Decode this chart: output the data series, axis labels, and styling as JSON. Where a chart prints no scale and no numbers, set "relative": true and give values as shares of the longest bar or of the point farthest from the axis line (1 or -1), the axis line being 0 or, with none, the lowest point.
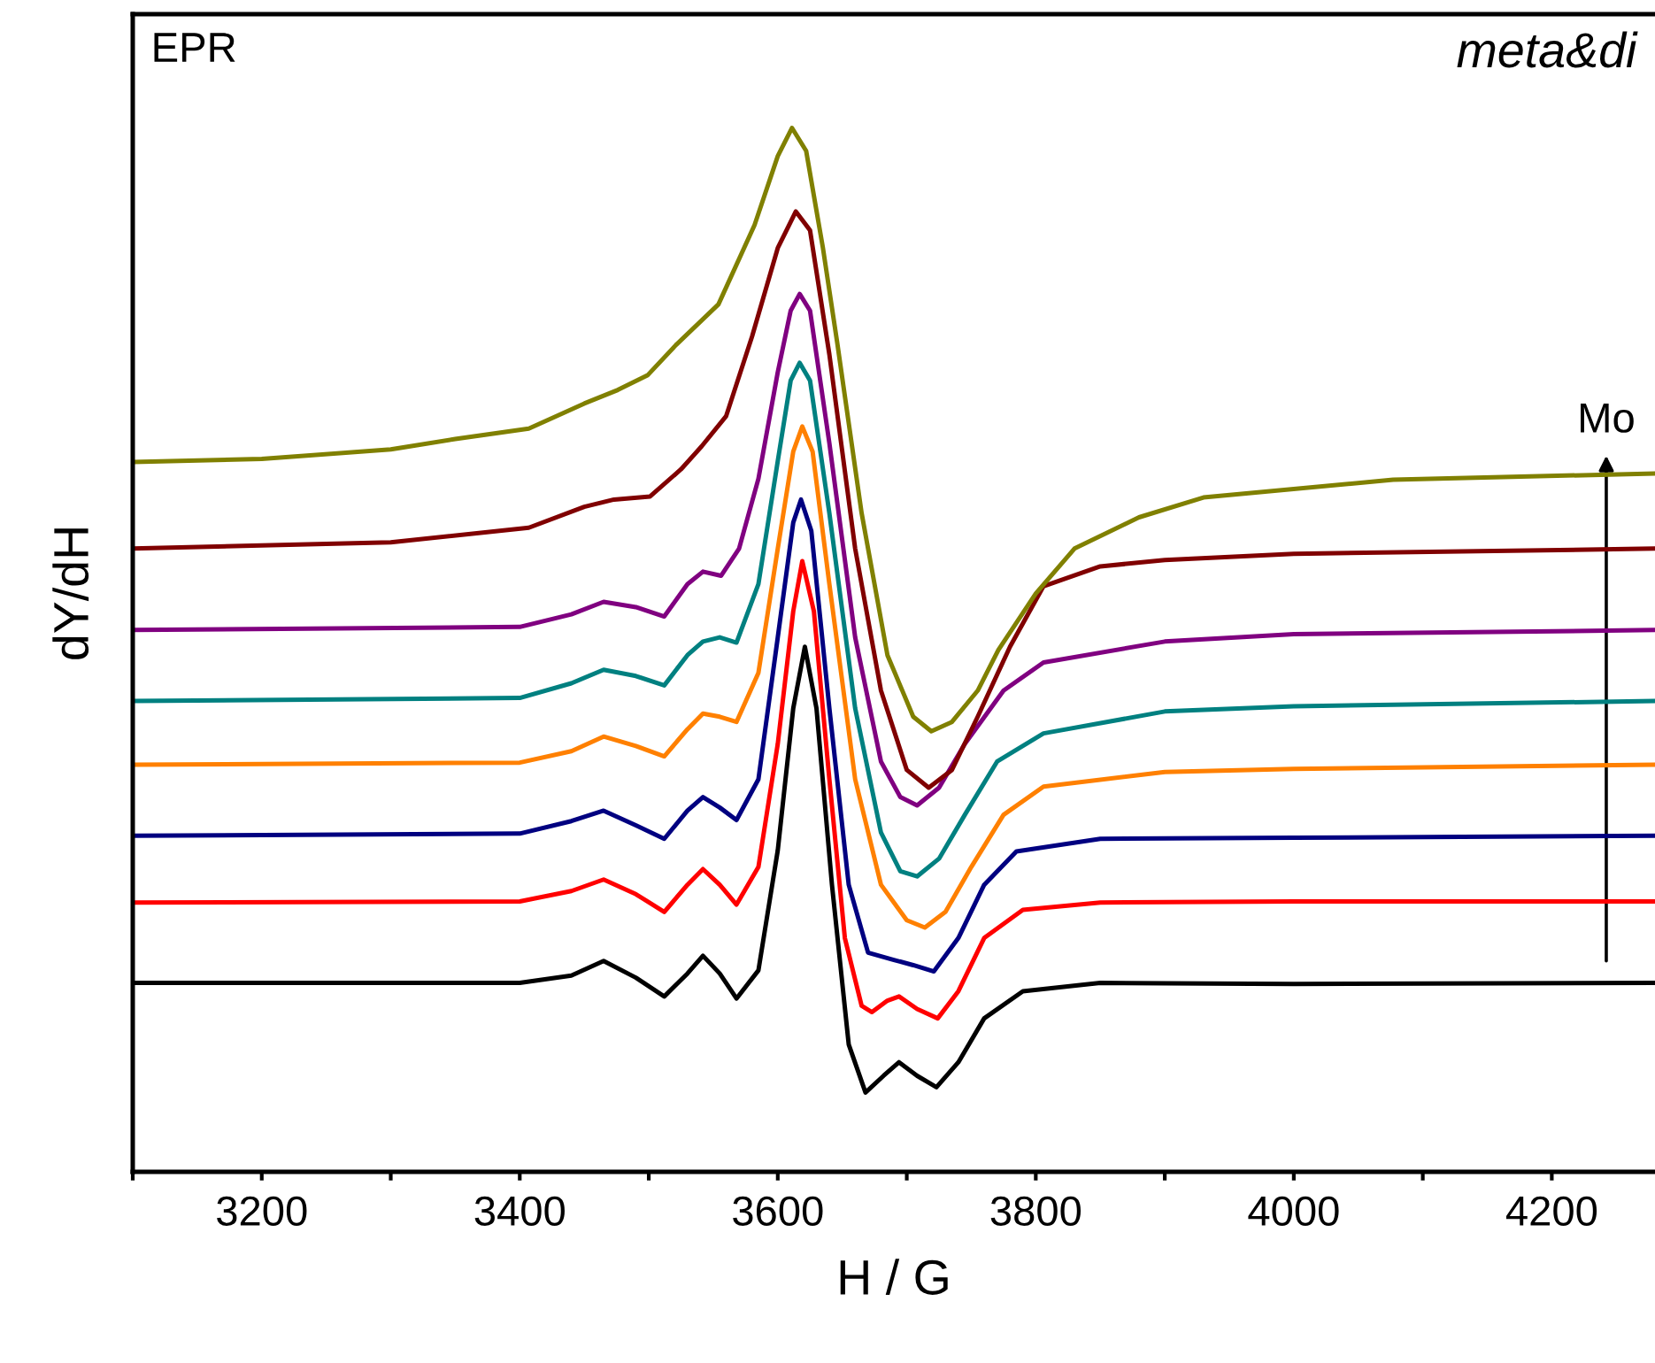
{
  "chart_data": {
    "type": "line",
    "relative": true,
    "xlabel": "H / G",
    "ylabel": "dY/dH",
    "annotations": [
      "EPR",
      "meta&di",
      "Mo"
    ],
    "xlim": [
      3100,
      4280
    ],
    "xticks": [
      {
        "value": 3100,
        "label": null
      },
      3200,
      {
        "value": 3300,
        "label": null
      },
      3400,
      {
        "value": 3500,
        "label": null
      },
      3600,
      {
        "value": 3700,
        "label": null
      },
      3800,
      {
        "value": 3900,
        "label": null
      },
      4000,
      {
        "value": 4100,
        "label": null
      },
      4200
    ],
    "tick_labels": "x",
    "grid": false,
    "legend": false,
    "marker": "none",
    "line_style": "solid",
    "series": [
      {
        "color": "#000000",
        "x": [
          3100,
          3400,
          3440,
          3465,
          3490,
          3512,
          3530,
          3542,
          3555,
          3568,
          3585,
          3600,
          3612,
          3621,
          3630,
          3642,
          3655,
          3668,
          3682,
          3694,
          3708,
          3723,
          3740,
          3760,
          3790,
          3850,
          4000,
          4280
        ],
        "values": [
          0.181,
          0.181,
          0.188,
          0.202,
          0.186,
          0.168,
          0.19,
          0.207,
          0.19,
          0.166,
          0.193,
          0.308,
          0.444,
          0.503,
          0.444,
          0.275,
          0.122,
          0.076,
          0.092,
          0.105,
          0.092,
          0.081,
          0.105,
          0.147,
          0.173,
          0.181,
          0.18,
          0.181
        ]
      },
      {
        "color": "#ff0000",
        "x": [
          3100,
          3400,
          3440,
          3465,
          3490,
          3512,
          3530,
          3542,
          3555,
          3568,
          3585,
          3600,
          3612,
          3619,
          3628,
          3640,
          3652,
          3665,
          3673,
          3685,
          3694,
          3708,
          3724,
          3740,
          3760,
          3790,
          3850,
          4000,
          4280
        ],
        "values": [
          0.258,
          0.259,
          0.269,
          0.28,
          0.266,
          0.249,
          0.275,
          0.29,
          0.275,
          0.256,
          0.292,
          0.41,
          0.537,
          0.585,
          0.537,
          0.376,
          0.224,
          0.159,
          0.153,
          0.164,
          0.168,
          0.156,
          0.147,
          0.173,
          0.224,
          0.251,
          0.258,
          0.259,
          0.259
        ]
      },
      {
        "color": "#000080",
        "x": [
          3100,
          3400,
          3440,
          3465,
          3490,
          3512,
          3530,
          3542,
          3555,
          3568,
          3585,
          3600,
          3612,
          3618,
          3626,
          3640,
          3655,
          3670,
          3690,
          3705,
          3721,
          3740,
          3760,
          3785,
          3850,
          4000,
          4280
        ],
        "values": [
          0.322,
          0.324,
          0.336,
          0.346,
          0.332,
          0.319,
          0.346,
          0.359,
          0.349,
          0.337,
          0.376,
          0.512,
          0.622,
          0.644,
          0.614,
          0.444,
          0.275,
          0.21,
          0.203,
          0.198,
          0.192,
          0.224,
          0.275,
          0.307,
          0.319,
          0.32,
          0.322
        ]
      },
      {
        "color": "#ff8000",
        "x": [
          3100,
          3400,
          3440,
          3465,
          3490,
          3512,
          3530,
          3542,
          3555,
          3568,
          3585,
          3600,
          3612,
          3619,
          3627,
          3640,
          3660,
          3680,
          3700,
          3714,
          3730,
          3750,
          3775,
          3806,
          3900,
          4000,
          4280
        ],
        "values": [
          0.39,
          0.392,
          0.403,
          0.417,
          0.408,
          0.398,
          0.424,
          0.439,
          0.436,
          0.431,
          0.478,
          0.597,
          0.69,
          0.714,
          0.69,
          0.563,
          0.376,
          0.275,
          0.241,
          0.234,
          0.249,
          0.292,
          0.342,
          0.369,
          0.383,
          0.386,
          0.39
        ]
      },
      {
        "color": "#008080",
        "x": [
          3100,
          3400,
          3440,
          3465,
          3490,
          3512,
          3530,
          3542,
          3555,
          3568,
          3585,
          3600,
          3610,
          3617,
          3625,
          3640,
          3660,
          3680,
          3695,
          3708,
          3725,
          3745,
          3770,
          3806,
          3900,
          4000,
          4280
        ],
        "values": [
          0.451,
          0.454,
          0.468,
          0.481,
          0.475,
          0.466,
          0.495,
          0.508,
          0.512,
          0.507,
          0.563,
          0.681,
          0.758,
          0.775,
          0.758,
          0.631,
          0.444,
          0.325,
          0.288,
          0.283,
          0.3,
          0.342,
          0.393,
          0.42,
          0.441,
          0.446,
          0.451
        ]
      },
      {
        "color": "#800080",
        "x": [
          3100,
          3400,
          3440,
          3465,
          3490,
          3512,
          3530,
          3542,
          3556,
          3570,
          3585,
          3600,
          3610,
          3617,
          3625,
          3640,
          3660,
          3680,
          3695,
          3708,
          3725,
          3745,
          3775,
          3806,
          3900,
          4000,
          4280
        ],
        "values": [
          0.519,
          0.522,
          0.534,
          0.546,
          0.541,
          0.532,
          0.563,
          0.575,
          0.571,
          0.597,
          0.664,
          0.766,
          0.825,
          0.841,
          0.825,
          0.698,
          0.512,
          0.393,
          0.359,
          0.351,
          0.368,
          0.41,
          0.461,
          0.488,
          0.508,
          0.515,
          0.519
        ]
      },
      {
        "color": "#800000",
        "x": [
          3100,
          3300,
          3407,
          3450,
          3473,
          3501,
          3525,
          3541,
          3560,
          3580,
          3600,
          3614,
          3625,
          3640,
          3660,
          3680,
          3700,
          3717,
          3735,
          3755,
          3780,
          3806,
          3850,
          3900,
          4000,
          4280
        ],
        "values": [
          0.597,
          0.603,
          0.617,
          0.637,
          0.644,
          0.647,
          0.673,
          0.695,
          0.724,
          0.8,
          0.885,
          0.92,
          0.902,
          0.783,
          0.597,
          0.461,
          0.385,
          0.368,
          0.385,
          0.436,
          0.503,
          0.561,
          0.58,
          0.586,
          0.592,
          0.597
        ]
      },
      {
        "color": "#808000",
        "x": [
          3100,
          3200,
          3300,
          3350,
          3407,
          3450,
          3476,
          3499,
          3521,
          3554,
          3582,
          3600,
          3611,
          3622,
          3635,
          3646,
          3665,
          3685,
          3705,
          3719,
          3735,
          3755,
          3771,
          3800,
          3830,
          3880,
          3930,
          4077,
          4280
        ],
        "values": [
          0.68,
          0.683,
          0.692,
          0.702,
          0.712,
          0.736,
          0.749,
          0.763,
          0.792,
          0.831,
          0.907,
          0.973,
          1.0,
          0.978,
          0.885,
          0.795,
          0.631,
          0.495,
          0.436,
          0.422,
          0.431,
          0.461,
          0.5,
          0.554,
          0.597,
          0.627,
          0.646,
          0.663,
          0.669
        ]
      }
    ]
  }
}
